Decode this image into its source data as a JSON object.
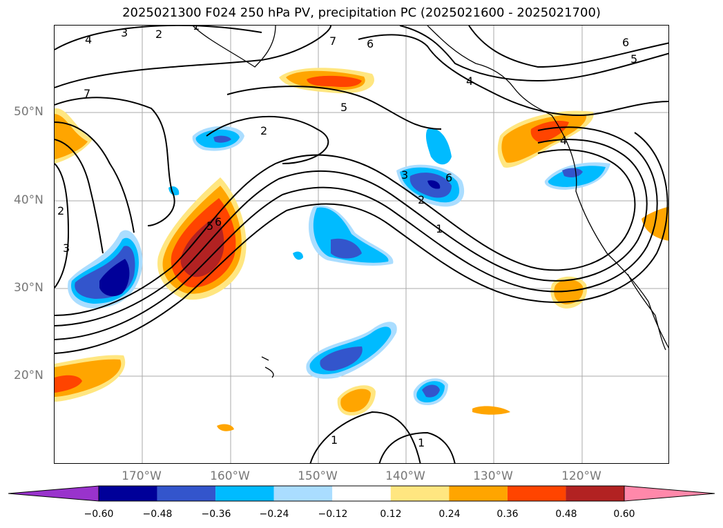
{
  "title": "2025021300 F024 250 hPa PV, precipitation PC (2025021600 - 2025021700)",
  "lat_labels": [
    "50°N",
    "40°N",
    "30°N",
    "20°N"
  ],
  "lon_labels": [
    "170°W",
    "160°W",
    "150°W",
    "140°W",
    "130°W",
    "120°W"
  ],
  "colorbar": {
    "ticks": [
      "−0.60",
      "−0.48",
      "−0.36",
      "−0.24",
      "−0.12",
      "0.12",
      "0.24",
      "0.36",
      "0.48",
      "0.60"
    ],
    "colors": [
      "#9933cc",
      "#000099",
      "#3355cc",
      "#00bbff",
      "#aaddff",
      "#ffffff",
      "#ffe680",
      "#ffa500",
      "#ff4400",
      "#b22222",
      "#ff88aa"
    ]
  },
  "contour_labels": [
    "4",
    "3",
    "2",
    "1",
    "7",
    "6",
    "6",
    "5",
    "7",
    "5",
    "2",
    "3",
    "6",
    "2",
    "1",
    "4",
    "4",
    "5",
    "6",
    "2",
    "3",
    "1",
    "1"
  ]
}
